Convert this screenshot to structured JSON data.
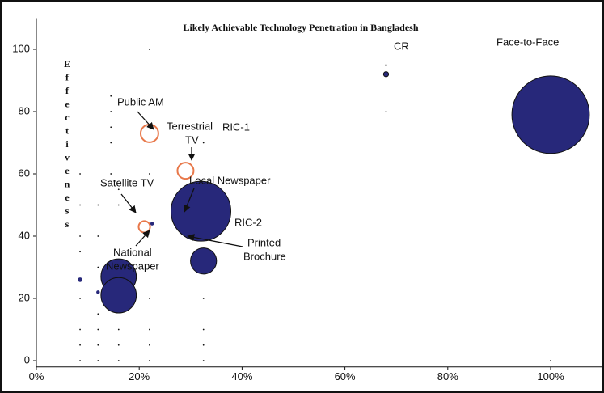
{
  "chart_data": {
    "type": "bubble",
    "title": "Likely Achievable Technology Penetration in Bangladesh",
    "ylabel": "Effectiveness",
    "xlim": [
      0,
      1.1
    ],
    "ylim": [
      -2,
      110
    ],
    "xticks": [
      {
        "value": 0,
        "label": "0%"
      },
      {
        "value": 0.2,
        "label": "20%"
      },
      {
        "value": 0.4,
        "label": "40%"
      },
      {
        "value": 0.6,
        "label": "60%"
      },
      {
        "value": 0.8,
        "label": "80%"
      },
      {
        "value": 1.0,
        "label": "100%"
      }
    ],
    "yticks": [
      0,
      20,
      40,
      60,
      80,
      100
    ],
    "annotations": [
      "CR",
      "Face-to-Face",
      "Public AM",
      "Terrestrial",
      "TV",
      "RIC-1",
      "Local Newspaper",
      "Satellite TV",
      "RIC-2",
      "National",
      "Newspaper",
      "Printed",
      "Brochure"
    ],
    "series": [
      {
        "color": "#27287a",
        "outline": false,
        "x": [
          1.0,
          0.68,
          0.32,
          0.325,
          0.16,
          0.16,
          0.085,
          0.12,
          0.225
        ],
        "y": [
          79,
          92,
          48,
          32,
          27,
          21,
          26,
          22,
          44
        ],
        "size": [
          230,
          1,
          137,
          26,
          48,
          48,
          0.8,
          0.5,
          0.5
        ]
      },
      {
        "color": "#e8784a",
        "outline": true,
        "x": [
          0.22,
          0.29,
          0.21
        ],
        "y": [
          73,
          61,
          43
        ],
        "size": [
          12,
          10,
          5
        ]
      },
      {
        "color": "#111111",
        "outline": false,
        "x": [
          0.085,
          0.085,
          0.085,
          0.085,
          0.085,
          0.085,
          0.085,
          0.085,
          0.12,
          0.12,
          0.12,
          0.12,
          0.12,
          0.12,
          0.12,
          0.145,
          0.145,
          0.145,
          0.145,
          0.145,
          0.16,
          0.16,
          0.16,
          0.16,
          0.16,
          0.22,
          0.22,
          0.22,
          0.22,
          0.22,
          0.22,
          0.22,
          0.325,
          0.325,
          0.325,
          0.325,
          0.325,
          0.68,
          0.68,
          1.0
        ],
        "y": [
          0,
          5,
          10,
          20,
          35,
          40,
          50,
          60,
          0,
          5,
          10,
          15,
          30,
          40,
          50,
          85,
          80,
          75,
          70,
          60,
          0,
          5,
          10,
          50,
          55,
          0,
          5,
          10,
          20,
          30,
          60,
          100,
          0,
          5,
          10,
          20,
          70,
          80,
          95,
          0
        ],
        "size": [
          0.05,
          0.05,
          0.05,
          0.05,
          0.05,
          0.05,
          0.05,
          0.05,
          0.05,
          0.05,
          0.05,
          0.05,
          0.05,
          0.05,
          0.05,
          0.05,
          0.05,
          0.05,
          0.05,
          0.05,
          0.05,
          0.05,
          0.05,
          0.05,
          0.05,
          0.05,
          0.05,
          0.05,
          0.05,
          0.05,
          0.05,
          0.05,
          0.05,
          0.05,
          0.05,
          0.05,
          0.05,
          0.05,
          0.05,
          0.05
        ]
      }
    ]
  }
}
